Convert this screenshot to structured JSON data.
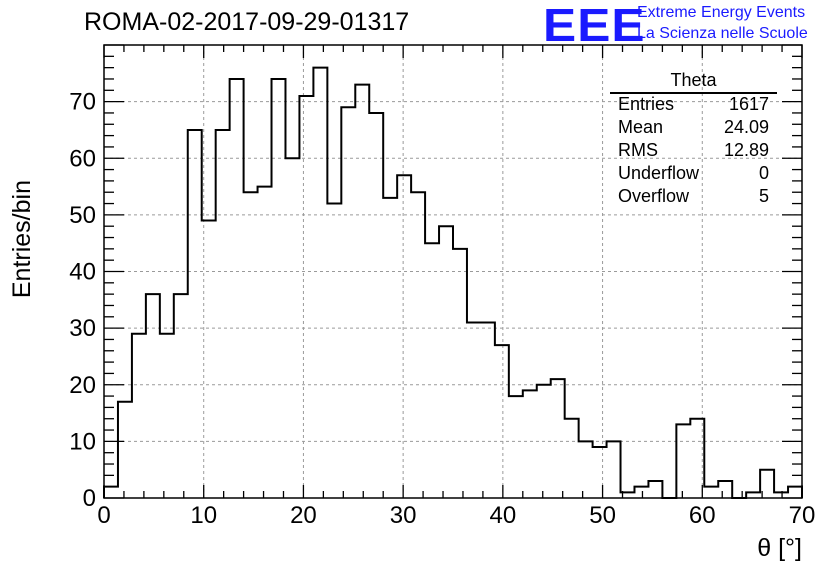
{
  "header": {
    "run_title": "ROMA-02-2017-09-29-01317",
    "logo_mark": "EEE",
    "logo_line1": "Extreme Energy Events",
    "logo_line2": "La Scienza nelle Scuole"
  },
  "stats_box": {
    "title": "Theta",
    "rows": [
      {
        "label": "Entries",
        "value": "1617"
      },
      {
        "label": "Mean",
        "value": "24.09"
      },
      {
        "label": "RMS",
        "value": "12.89"
      },
      {
        "label": "Underflow",
        "value": "0"
      },
      {
        "label": "Overflow",
        "value": "5"
      }
    ]
  },
  "chart_data": {
    "type": "histogram",
    "title": "ROMA-02-2017-09-29-01317",
    "xlabel": "θ [°]",
    "ylabel": "Entries/bin",
    "xlim": [
      0,
      70
    ],
    "ylim": [
      0,
      80
    ],
    "bin_width": 1.4,
    "bin_edges_start": 0,
    "xticks": [
      0,
      10,
      20,
      30,
      40,
      50,
      60,
      70
    ],
    "yticks": [
      0,
      10,
      20,
      30,
      40,
      50,
      60,
      70
    ],
    "grid": true,
    "line_color": "#000000",
    "values": [
      2,
      17,
      29,
      36,
      29,
      36,
      65,
      49,
      65,
      74,
      54,
      55,
      74,
      60,
      71,
      76,
      52,
      69,
      73,
      68,
      53,
      57,
      54,
      45,
      48,
      44,
      31,
      31,
      27,
      18,
      19,
      20,
      21,
      14,
      10,
      9,
      10,
      1,
      2,
      3,
      0,
      13,
      14,
      2,
      3,
      0,
      1,
      5,
      1,
      2
    ]
  }
}
